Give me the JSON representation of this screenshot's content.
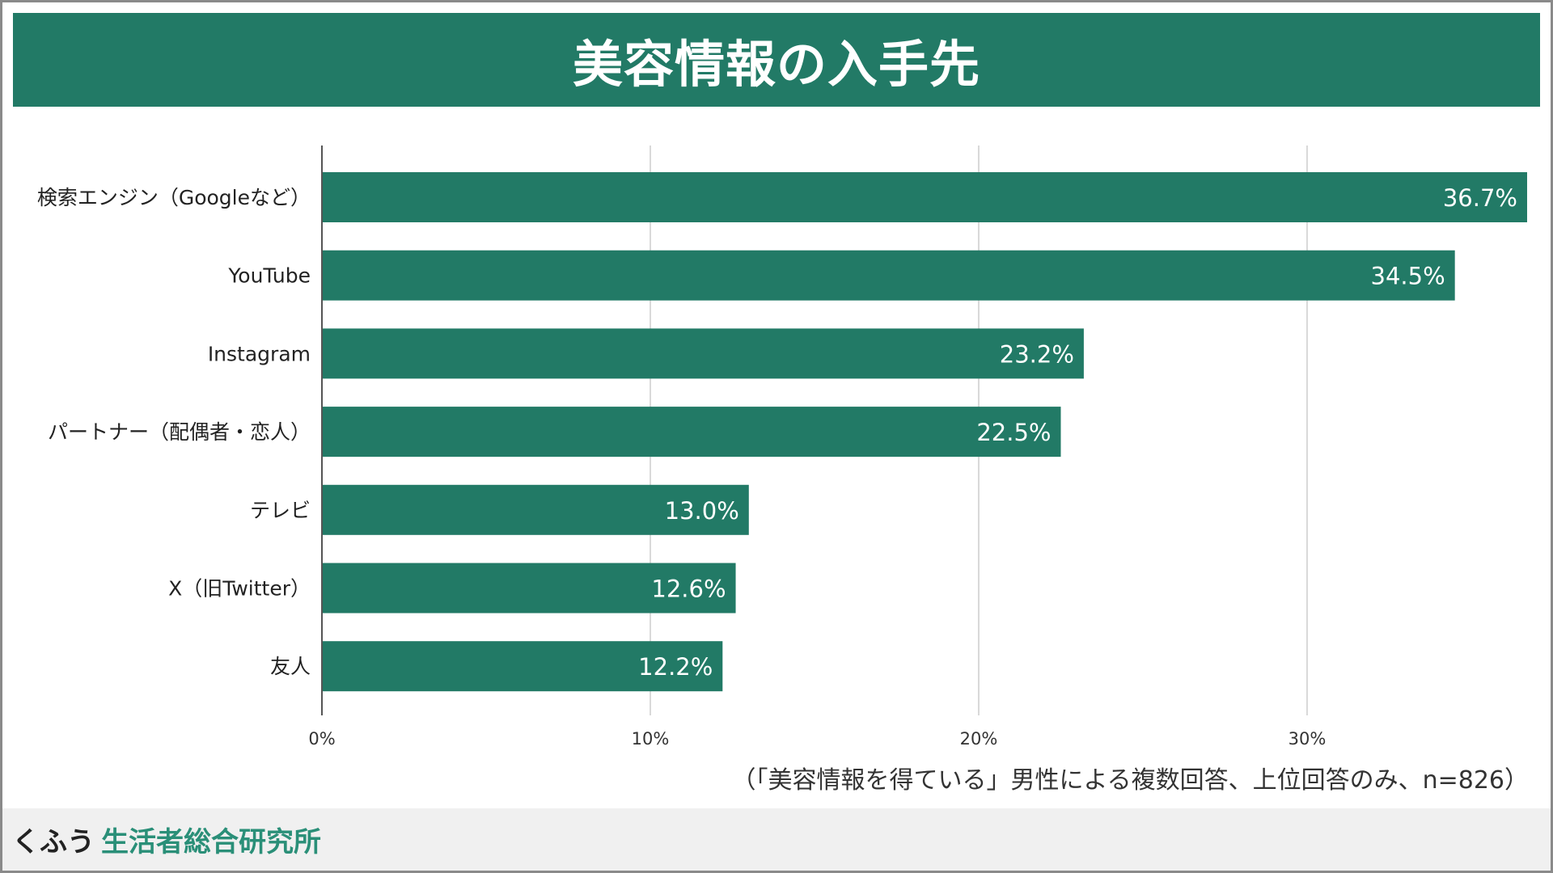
{
  "header": {
    "title": "美容情報の入手先"
  },
  "chart_data": {
    "type": "bar",
    "orientation": "horizontal",
    "title": "美容情報の入手先",
    "categories": [
      "検索エンジン（Googleなど）",
      "YouTube",
      "Instagram",
      "パートナー（配偶者・恋人）",
      "テレビ",
      "X（旧Twitter）",
      "友人"
    ],
    "values": [
      36.7,
      34.5,
      23.2,
      22.5,
      13.0,
      12.6,
      12.2
    ],
    "value_labels": [
      "36.7%",
      "34.5%",
      "23.2%",
      "22.5%",
      "13.0%",
      "12.6%",
      "12.2%"
    ],
    "xlim": [
      0,
      36.7
    ],
    "xticks": [
      0,
      10,
      20,
      30
    ],
    "xtick_labels": [
      "0%",
      "10%",
      "20%",
      "30%"
    ],
    "grid": true,
    "bar_color": "#227a66",
    "label_color": "#ffffff"
  },
  "note": "（「美容情報を得ている」男性による複数回答、上位回答のみ、n=826）",
  "footer": {
    "brand_prefix": "くふう",
    "brand_name": "生活者総合研究所"
  },
  "colors": {
    "accent": "#227a66",
    "brand_green": "#2a8f78",
    "grid": "#d9d9d9",
    "axis": "#555555"
  }
}
